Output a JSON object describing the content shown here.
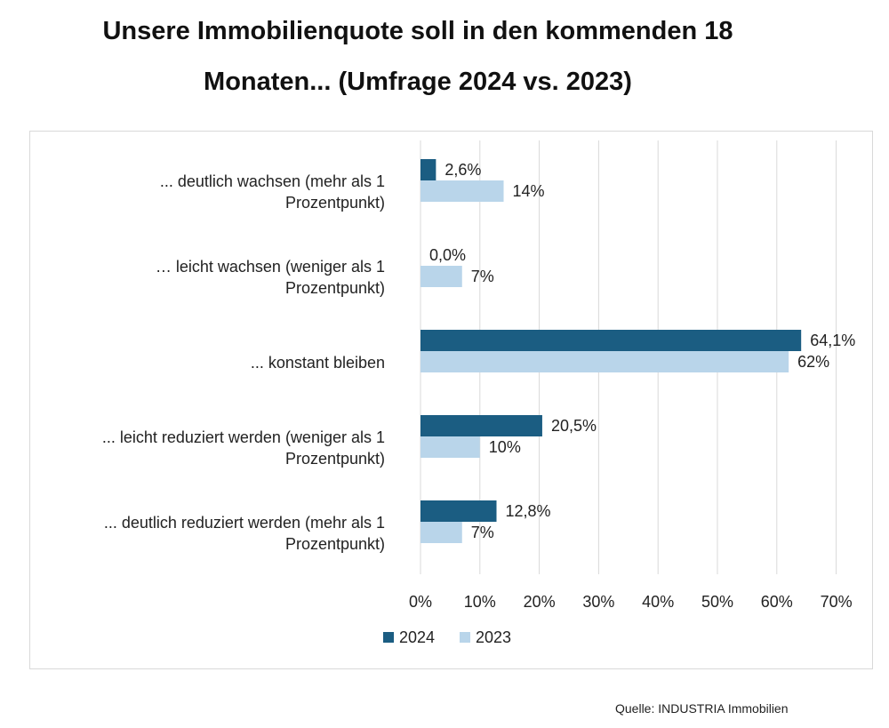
{
  "title_lines": [
    "Unsere Immobilienquote soll in den kommenden 18",
    "Monaten... (Umfrage 2024 vs. 2023)"
  ],
  "source": "Quelle: INDUSTRIA Immobilien",
  "colors": {
    "s2024": "#1b5d82",
    "s2023": "#b9d5ea",
    "grid": "#d9d9d9"
  },
  "category_label_lines": [
    [
      "... deutlich wachsen (mehr als 1",
      "Prozentpunkt)"
    ],
    [
      "… leicht wachsen (weniger als 1",
      "Prozentpunkt)"
    ],
    [
      "... konstant bleiben"
    ],
    [
      "... leicht reduziert werden (weniger als 1",
      "Prozentpunkt)"
    ],
    [
      "... deutlich reduziert werden (mehr als 1",
      "Prozentpunkt)"
    ]
  ],
  "chart_data": {
    "type": "bar",
    "orientation": "horizontal",
    "title": "Unsere Immobilienquote soll in den kommenden 18 Monaten... (Umfrage 2024 vs. 2023)",
    "categories": [
      "... deutlich wachsen (mehr als 1 Prozentpunkt)",
      "… leicht wachsen (weniger als 1 Prozentpunkt)",
      "... konstant bleiben",
      "... leicht reduziert werden (weniger als 1 Prozentpunkt)",
      "... deutlich reduziert werden (mehr als 1 Prozentpunkt)"
    ],
    "series": [
      {
        "name": "2024",
        "values": [
          2.6,
          0.0,
          64.1,
          20.5,
          12.8
        ],
        "labels": [
          "2,6%",
          "0,0%",
          "64,1%",
          "20,5%",
          "12,8%"
        ]
      },
      {
        "name": "2023",
        "values": [
          14,
          7,
          62,
          10,
          7
        ],
        "labels": [
          "14%",
          "7%",
          "62%",
          "10%",
          "7%"
        ]
      }
    ],
    "xlim": [
      0,
      70
    ],
    "xticks": [
      "0%",
      "10%",
      "20%",
      "30%",
      "40%",
      "50%",
      "60%",
      "70%"
    ],
    "grid": true,
    "legend_position": "bottom"
  }
}
